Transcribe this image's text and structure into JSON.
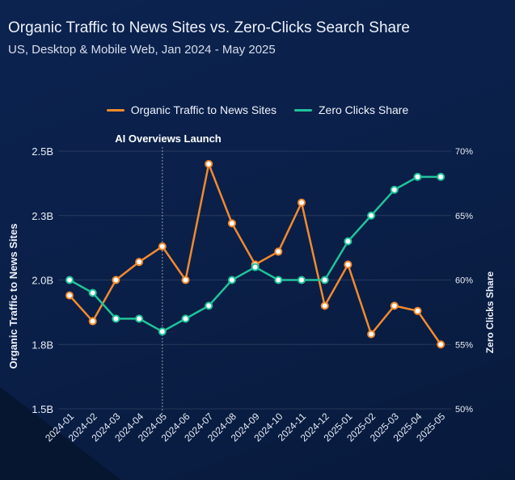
{
  "header": {
    "title": "Organic Traffic to News Sites vs. Zero-Clicks Search Share",
    "subtitle": "US, Desktop & Mobile Web, Jan 2024 - May 2025"
  },
  "legend": [
    {
      "label": "Organic Traffic to News Sites",
      "color": "#f28a2e"
    },
    {
      "label": "Zero Clicks Share",
      "color": "#20c39a"
    }
  ],
  "chart_data": {
    "type": "line",
    "categories": [
      "2024-01",
      "2024-02",
      "2024-03",
      "2024-04",
      "2024-05",
      "2024-06",
      "2024-07",
      "2024-08",
      "2024-09",
      "2024-10",
      "2024-11",
      "2024-12",
      "2025-01",
      "2025-02",
      "2025-03",
      "2025-04",
      "2025-05"
    ],
    "series": [
      {
        "name": "Organic Traffic to News Sites",
        "axis": "left",
        "color": "#f28a2e",
        "values": [
          1.94,
          1.84,
          2.0,
          2.07,
          2.13,
          2.0,
          2.45,
          2.22,
          2.06,
          2.11,
          2.3,
          1.9,
          2.06,
          1.79,
          1.9,
          1.88,
          1.75
        ]
      },
      {
        "name": "Zero Clicks Share",
        "axis": "right",
        "color": "#20c39a",
        "values": [
          60,
          59,
          57,
          57,
          56,
          57,
          58,
          60,
          61,
          60,
          60,
          60,
          63,
          65,
          67,
          68,
          68
        ]
      }
    ],
    "left_axis": {
      "label": "Organic Traffic to News Sites",
      "range": [
        1.5,
        2.5
      ],
      "ticks": [
        1.5,
        1.75,
        2.0,
        2.25,
        2.5
      ],
      "tick_labels": [
        "1.5B",
        "1.8B",
        "2.0B",
        "2.3B",
        "2.5B"
      ]
    },
    "right_axis": {
      "label": "Zero Clicks Share",
      "range": [
        50,
        70
      ],
      "ticks": [
        50,
        55,
        60,
        65,
        70
      ],
      "tick_labels": [
        "50%",
        "55%",
        "60%",
        "65%",
        "70%"
      ]
    },
    "annotation": {
      "label": "AI Overviews Launch",
      "category": "2024-05"
    },
    "grid": true,
    "legend_position": "top-center"
  }
}
